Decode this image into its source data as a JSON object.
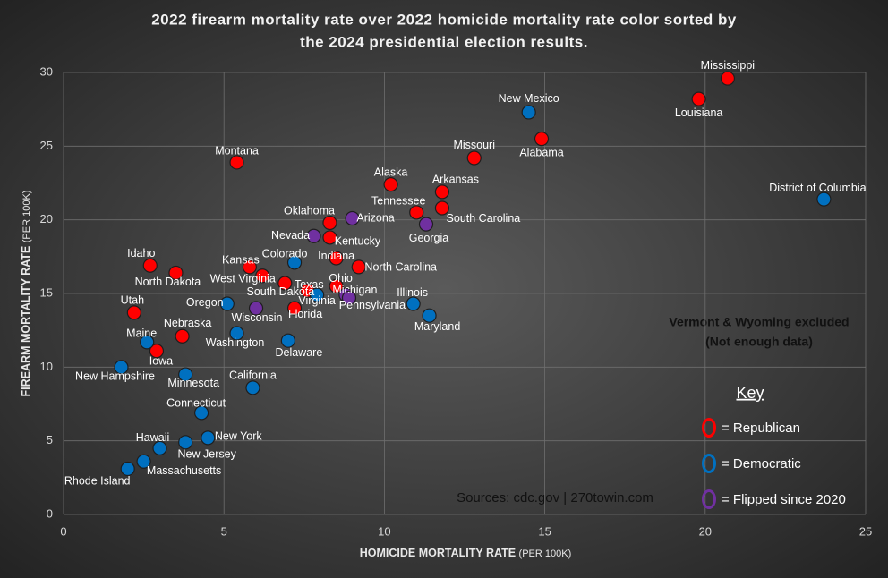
{
  "chart_data": {
    "type": "scatter",
    "title": [
      "2022 firearm mortality rate over 2022 homicide mortality rate color sorted by",
      "the 2024 presidential election results."
    ],
    "x_label": "HOMICIDE MORTALITY RATE",
    "x_label_unit": "(PER 100K)",
    "y_label": "FIREARM MORTALITY RATE",
    "y_label_unit": "(PER 100K)",
    "xlim": [
      0,
      25
    ],
    "xticks": [
      0,
      5,
      10,
      15,
      20,
      25
    ],
    "ylim": [
      0,
      30
    ],
    "yticks": [
      0,
      5,
      10,
      15,
      20,
      25,
      30
    ],
    "grid": true,
    "legend_title": "Key",
    "annotations": [
      "Vermont & Wyoming excluded",
      "(Not enough data)"
    ],
    "source": "Sources: cdc.gov | 270towin.com",
    "series": [
      {
        "name": "= Republican",
        "color": "#ff0000",
        "labels": [
          "Mississippi",
          "Louisiana",
          "Alabama",
          "Missouri",
          "Montana",
          "Alaska",
          "Arkansas",
          "Tennessee",
          "South Carolina",
          "Oklahoma",
          "Kentucky",
          "Indiana",
          "North Carolina",
          "Idaho",
          "North Dakota",
          "Kansas",
          "West Virginia",
          "Texas",
          "Ohio",
          "South Dakota",
          "Florida",
          "Utah",
          "Nebraska",
          "Iowa"
        ],
        "x": [
          20.7,
          19.8,
          14.9,
          12.8,
          5.4,
          10.2,
          11.8,
          11.0,
          11.8,
          8.3,
          8.3,
          8.5,
          9.2,
          2.7,
          3.5,
          5.8,
          6.2,
          6.9,
          8.5,
          7.6,
          7.2,
          2.2,
          3.7,
          2.9
        ],
        "values": [
          29.6,
          28.2,
          25.5,
          24.2,
          23.9,
          22.4,
          21.9,
          20.5,
          20.8,
          19.8,
          18.8,
          17.4,
          16.8,
          16.9,
          16.4,
          16.8,
          16.2,
          15.7,
          15.5,
          15.2,
          14.0,
          13.7,
          12.1,
          11.1
        ]
      },
      {
        "name": "= Democratic",
        "color": "#0070c0",
        "labels": [
          "New Mexico",
          "District of Columbia",
          "Colorado",
          "Virginia",
          "Oregon",
          "Illinois",
          "Maryland",
          "Washington",
          "Delaware",
          "Maine",
          "New Hampshire",
          "Minnesota",
          "California",
          "Connecticut",
          "New York",
          "New Jersey",
          "Hawaii",
          "Massachusetts",
          "Rhode Island"
        ],
        "x": [
          14.5,
          23.7,
          7.2,
          7.9,
          5.1,
          10.9,
          11.4,
          5.4,
          7.0,
          2.6,
          1.8,
          3.8,
          5.9,
          4.3,
          4.5,
          3.8,
          3.0,
          2.5,
          2.0
        ],
        "values": [
          27.3,
          21.4,
          17.1,
          14.9,
          14.3,
          14.3,
          13.5,
          12.3,
          11.8,
          11.7,
          10.0,
          9.5,
          8.6,
          6.9,
          5.2,
          4.9,
          4.5,
          3.6,
          3.1
        ]
      },
      {
        "name": "= Flipped since 2020",
        "color": "#7030a0",
        "labels": [
          "Arizona",
          "Georgia",
          "Nevada",
          "Michigan",
          "Pennsylvania",
          "Wisconsin"
        ],
        "x": [
          9.0,
          11.3,
          7.8,
          8.8,
          8.9,
          6.0
        ],
        "values": [
          20.1,
          19.7,
          18.9,
          14.9,
          14.7,
          14.0
        ]
      }
    ]
  }
}
